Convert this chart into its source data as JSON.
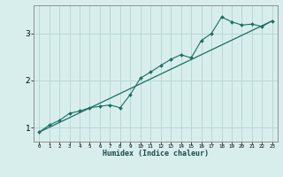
{
  "xlabel": "Humidex (Indice chaleur)",
  "ylabel": "",
  "bg_color": "#d8eeed",
  "grid_color": "#b8d8d5",
  "line_color": "#1a6e62",
  "xlim": [
    -0.5,
    23.5
  ],
  "ylim": [
    0.7,
    3.6
  ],
  "yticks": [
    1,
    2,
    3
  ],
  "xticks": [
    0,
    1,
    2,
    3,
    4,
    5,
    6,
    7,
    8,
    9,
    10,
    11,
    12,
    13,
    14,
    15,
    16,
    17,
    18,
    19,
    20,
    21,
    22,
    23
  ],
  "data_x": [
    0,
    1,
    2,
    3,
    4,
    5,
    6,
    7,
    8,
    9,
    10,
    11,
    12,
    13,
    14,
    15,
    16,
    17,
    18,
    19,
    20,
    21,
    22,
    23
  ],
  "data_y": [
    0.9,
    1.05,
    1.15,
    1.3,
    1.35,
    1.42,
    1.45,
    1.48,
    1.42,
    1.7,
    2.05,
    2.18,
    2.32,
    2.45,
    2.55,
    2.48,
    2.85,
    3.0,
    3.35,
    3.25,
    3.18,
    3.2,
    3.15,
    3.27
  ],
  "trend_x": [
    0,
    23
  ],
  "trend_y": [
    0.9,
    3.27
  ]
}
